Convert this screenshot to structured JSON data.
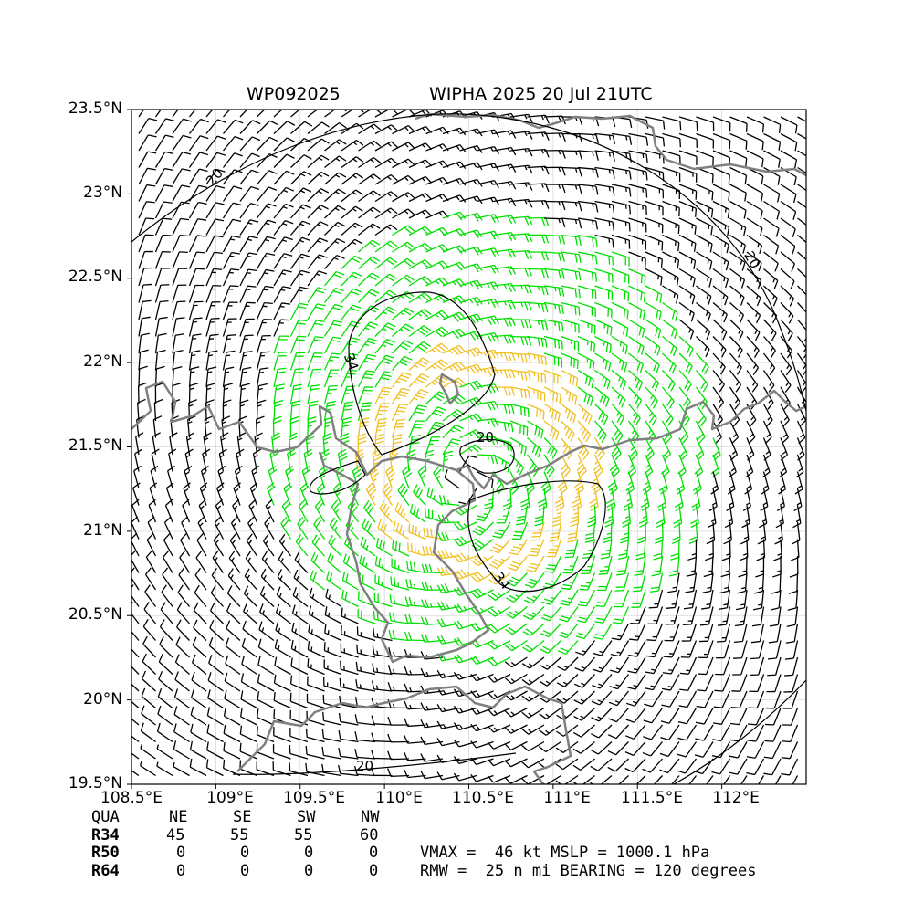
{
  "title": {
    "left": "WP092025",
    "right": "WIPHA 2025 20 Jul 21UTC"
  },
  "axes": {
    "lat_labels": [
      "23.5°N",
      "23°N",
      "22.5°N",
      "22°N",
      "21.5°N",
      "21°N",
      "20.5°N",
      "20°N",
      "19.5°N"
    ],
    "lon_labels": [
      "108.5°E",
      "109°E",
      "109.5°E",
      "110°E",
      "110.5°E",
      "111°E",
      "111.5°E",
      "112°E"
    ]
  },
  "map": {
    "lon_range": [
      108.5,
      112.5
    ],
    "lat_range": [
      19.5,
      23.5
    ],
    "storm_center": {
      "lon": 110.5,
      "lat": 21.3
    },
    "contour_labels": [
      "20",
      "34",
      "34",
      "20",
      "20",
      "20"
    ],
    "colors": {
      "barb_lt_20": "#000000",
      "barb_20_34": "#00e000",
      "barb_ge_34": "#f0c020",
      "coast": "#808080",
      "grid": "#d8d8d8"
    }
  },
  "table": {
    "header": [
      "QUA",
      "NE",
      "SE",
      "SW",
      "NW"
    ],
    "rows": [
      {
        "label": "R34",
        "values": [
          "45",
          "55",
          "55",
          "60"
        ]
      },
      {
        "label": "R50",
        "values": [
          "0",
          "0",
          "0",
          "0"
        ]
      },
      {
        "label": "R64",
        "values": [
          "0",
          "0",
          "0",
          "0"
        ]
      }
    ],
    "vmax_line": "VMAX =  46 kt MSLP = 1000.1 hPa",
    "rmw_line": "RMW =  25 n mi BEARING = 120 degrees"
  }
}
